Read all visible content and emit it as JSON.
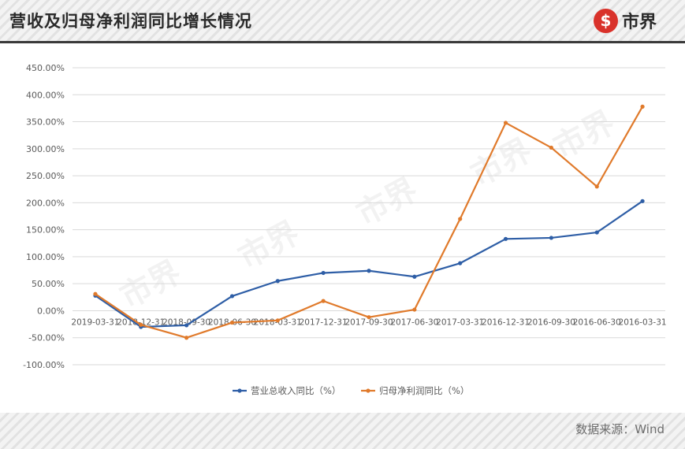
{
  "header": {
    "title": "营收及归母净利润同比增长情况",
    "logo_text": "市界"
  },
  "footer": {
    "source": "数据来源：Wind"
  },
  "watermark": "市界",
  "colors": {
    "revenue": "#2e5ea6",
    "net_profit": "#e07a2b",
    "grid": "#d9d9d9",
    "label": "#595959"
  },
  "chart_data": {
    "type": "line",
    "title": "",
    "xlabel": "",
    "ylabel": "",
    "categories": [
      "2019-03-31",
      "2018-12-31",
      "2018-09-30",
      "2018-06-30",
      "2018-03-31",
      "2017-12-31",
      "2017-09-30",
      "2017-06-30",
      "2017-03-31",
      "2016-12-31",
      "2016-09-30",
      "2016-06-30",
      "2016-03-31"
    ],
    "yticks": [
      "450.00%",
      "400.00%",
      "350.00%",
      "300.00%",
      "250.00%",
      "200.00%",
      "150.00%",
      "100.00%",
      "50.00%",
      "0.00%",
      "-50.00%",
      "-100.00%"
    ],
    "ylim": [
      -100,
      450
    ],
    "ytick_step": 50,
    "grid": true,
    "legend_position": "bottom",
    "series": [
      {
        "name": "营业总收入同比（%）",
        "values": [
          28,
          -30,
          -27,
          27,
          55,
          70,
          74,
          63,
          88,
          133,
          135,
          145,
          203
        ]
      },
      {
        "name": "归母净利润同比（%）",
        "values": [
          31,
          -26,
          -50,
          -22,
          -18,
          18,
          -12,
          2,
          170,
          348,
          302,
          230,
          378
        ]
      }
    ]
  }
}
